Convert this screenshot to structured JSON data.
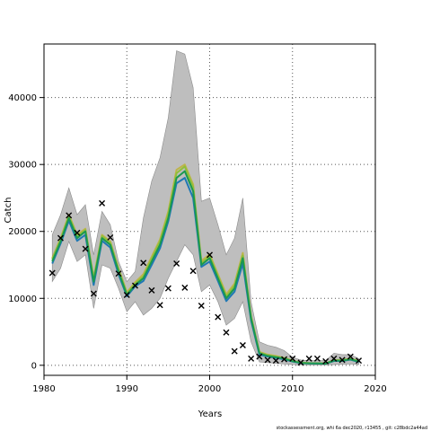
{
  "chart_data": {
    "type": "line",
    "xlabel": "Years",
    "ylabel": "Catch",
    "xlim": [
      1980,
      2020
    ],
    "ylim": [
      -1500,
      48000
    ],
    "x_ticks": [
      1980,
      1990,
      2000,
      2010,
      2020
    ],
    "y_ticks": [
      0,
      10000,
      20000,
      30000,
      40000
    ],
    "grid": true,
    "footer": "stockassessment.org, whi 6a dec2020, r13455 , git: c28bdc2a44ad",
    "x": [
      1981,
      1982,
      1983,
      1984,
      1985,
      1986,
      1987,
      1988,
      1989,
      1990,
      1991,
      1992,
      1993,
      1994,
      1995,
      1996,
      1997,
      1998,
      1999,
      2000,
      2001,
      2002,
      2003,
      2004,
      2005,
      2006,
      2007,
      2008,
      2009,
      2010,
      2011,
      2012,
      2013,
      2014,
      2015,
      2016,
      2017,
      2018
    ],
    "band_upper": [
      19500,
      22500,
      26500,
      22500,
      24000,
      16500,
      23000,
      21000,
      15500,
      12500,
      14000,
      22000,
      27500,
      31000,
      37000,
      47000,
      46500,
      41500,
      24500,
      25000,
      21000,
      16500,
      19000,
      25000,
      9500,
      3500,
      3000,
      2700,
      2200,
      1200,
      800,
      700,
      700,
      700,
      1800,
      1600,
      1600,
      1000
    ],
    "band_lower": [
      12500,
      14500,
      18500,
      15500,
      16500,
      8500,
      15000,
      14500,
      11500,
      8000,
      9500,
      7500,
      8500,
      10000,
      13000,
      15500,
      18000,
      16500,
      11000,
      12000,
      9500,
      6000,
      7000,
      9500,
      3500,
      500,
      400,
      300,
      200,
      100,
      80,
      60,
      50,
      50,
      100,
      150,
      200,
      100
    ],
    "series": [
      {
        "values": [
          15500,
          18500,
          22000,
          19000,
          20000,
          12500,
          19000,
          18000,
          14000,
          10500,
          12000,
          13000,
          15500,
          18000,
          22000,
          28000,
          29000,
          26000,
          15000,
          16000,
          13000,
          10000,
          11500,
          16000,
          7000,
          1800,
          1400,
          1200,
          1000,
          600,
          350,
          300,
          280,
          250,
          700,
          700,
          900,
          550
        ]
      },
      {
        "values": [
          15200,
          18200,
          21600,
          18600,
          19500,
          12000,
          18600,
          17600,
          13600,
          10300,
          11800,
          12600,
          15000,
          17500,
          21500,
          27200,
          28000,
          25000,
          14700,
          15500,
          12600,
          9600,
          11000,
          15200,
          6700,
          1600,
          1300,
          1100,
          900,
          550,
          320,
          280,
          260,
          230,
          650,
          650,
          850,
          500
        ]
      },
      {
        "values": [
          15800,
          18800,
          22300,
          19300,
          20200,
          12900,
          19300,
          18300,
          14300,
          10700,
          12200,
          13300,
          15900,
          18500,
          22600,
          28700,
          29700,
          26600,
          15300,
          16300,
          13300,
          10300,
          11900,
          16400,
          7200,
          1900,
          1500,
          1300,
          1050,
          650,
          380,
          320,
          300,
          270,
          760,
          750,
          950,
          600
        ]
      },
      {
        "values": [
          16000,
          19000,
          22500,
          19500,
          20400,
          13100,
          19500,
          18500,
          14500,
          10900,
          12400,
          13600,
          16200,
          18800,
          23000,
          29200,
          30000,
          27000,
          15600,
          16600,
          13600,
          10600,
          12200,
          16800,
          7400,
          2000,
          1600,
          1400,
          1100,
          700,
          400,
          340,
          320,
          290,
          800,
          800,
          1000,
          650
        ]
      }
    ],
    "observed": {
      "x": [
        1981,
        1982,
        1983,
        1984,
        1985,
        1986,
        1987,
        1988,
        1989,
        1990,
        1991,
        1992,
        1993,
        1994,
        1995,
        1996,
        1997,
        1998,
        1999,
        2000,
        2001,
        2002,
        2003,
        2004,
        2005,
        2006,
        2007,
        2008,
        2009,
        2010,
        2011,
        2012,
        2013,
        2014,
        2015,
        2016,
        2017,
        2018
      ],
      "y": [
        13800,
        19000,
        22400,
        19800,
        17400,
        10700,
        24200,
        19100,
        13700,
        10500,
        11900,
        15300,
        11200,
        9000,
        11500,
        15200,
        11600,
        14100,
        8900,
        16500,
        7200,
        4900,
        2100,
        3000,
        1000,
        1300,
        800,
        700,
        900,
        1000,
        400,
        1000,
        1000,
        600,
        1000,
        800,
        1300,
        700
      ]
    },
    "colors": {
      "band": "#bebebe",
      "series": [
        "#1a9850",
        "#1f78b4",
        "#8fbf3a",
        "#bdb54a"
      ],
      "observed": "#000000",
      "grid": "#555555"
    }
  }
}
